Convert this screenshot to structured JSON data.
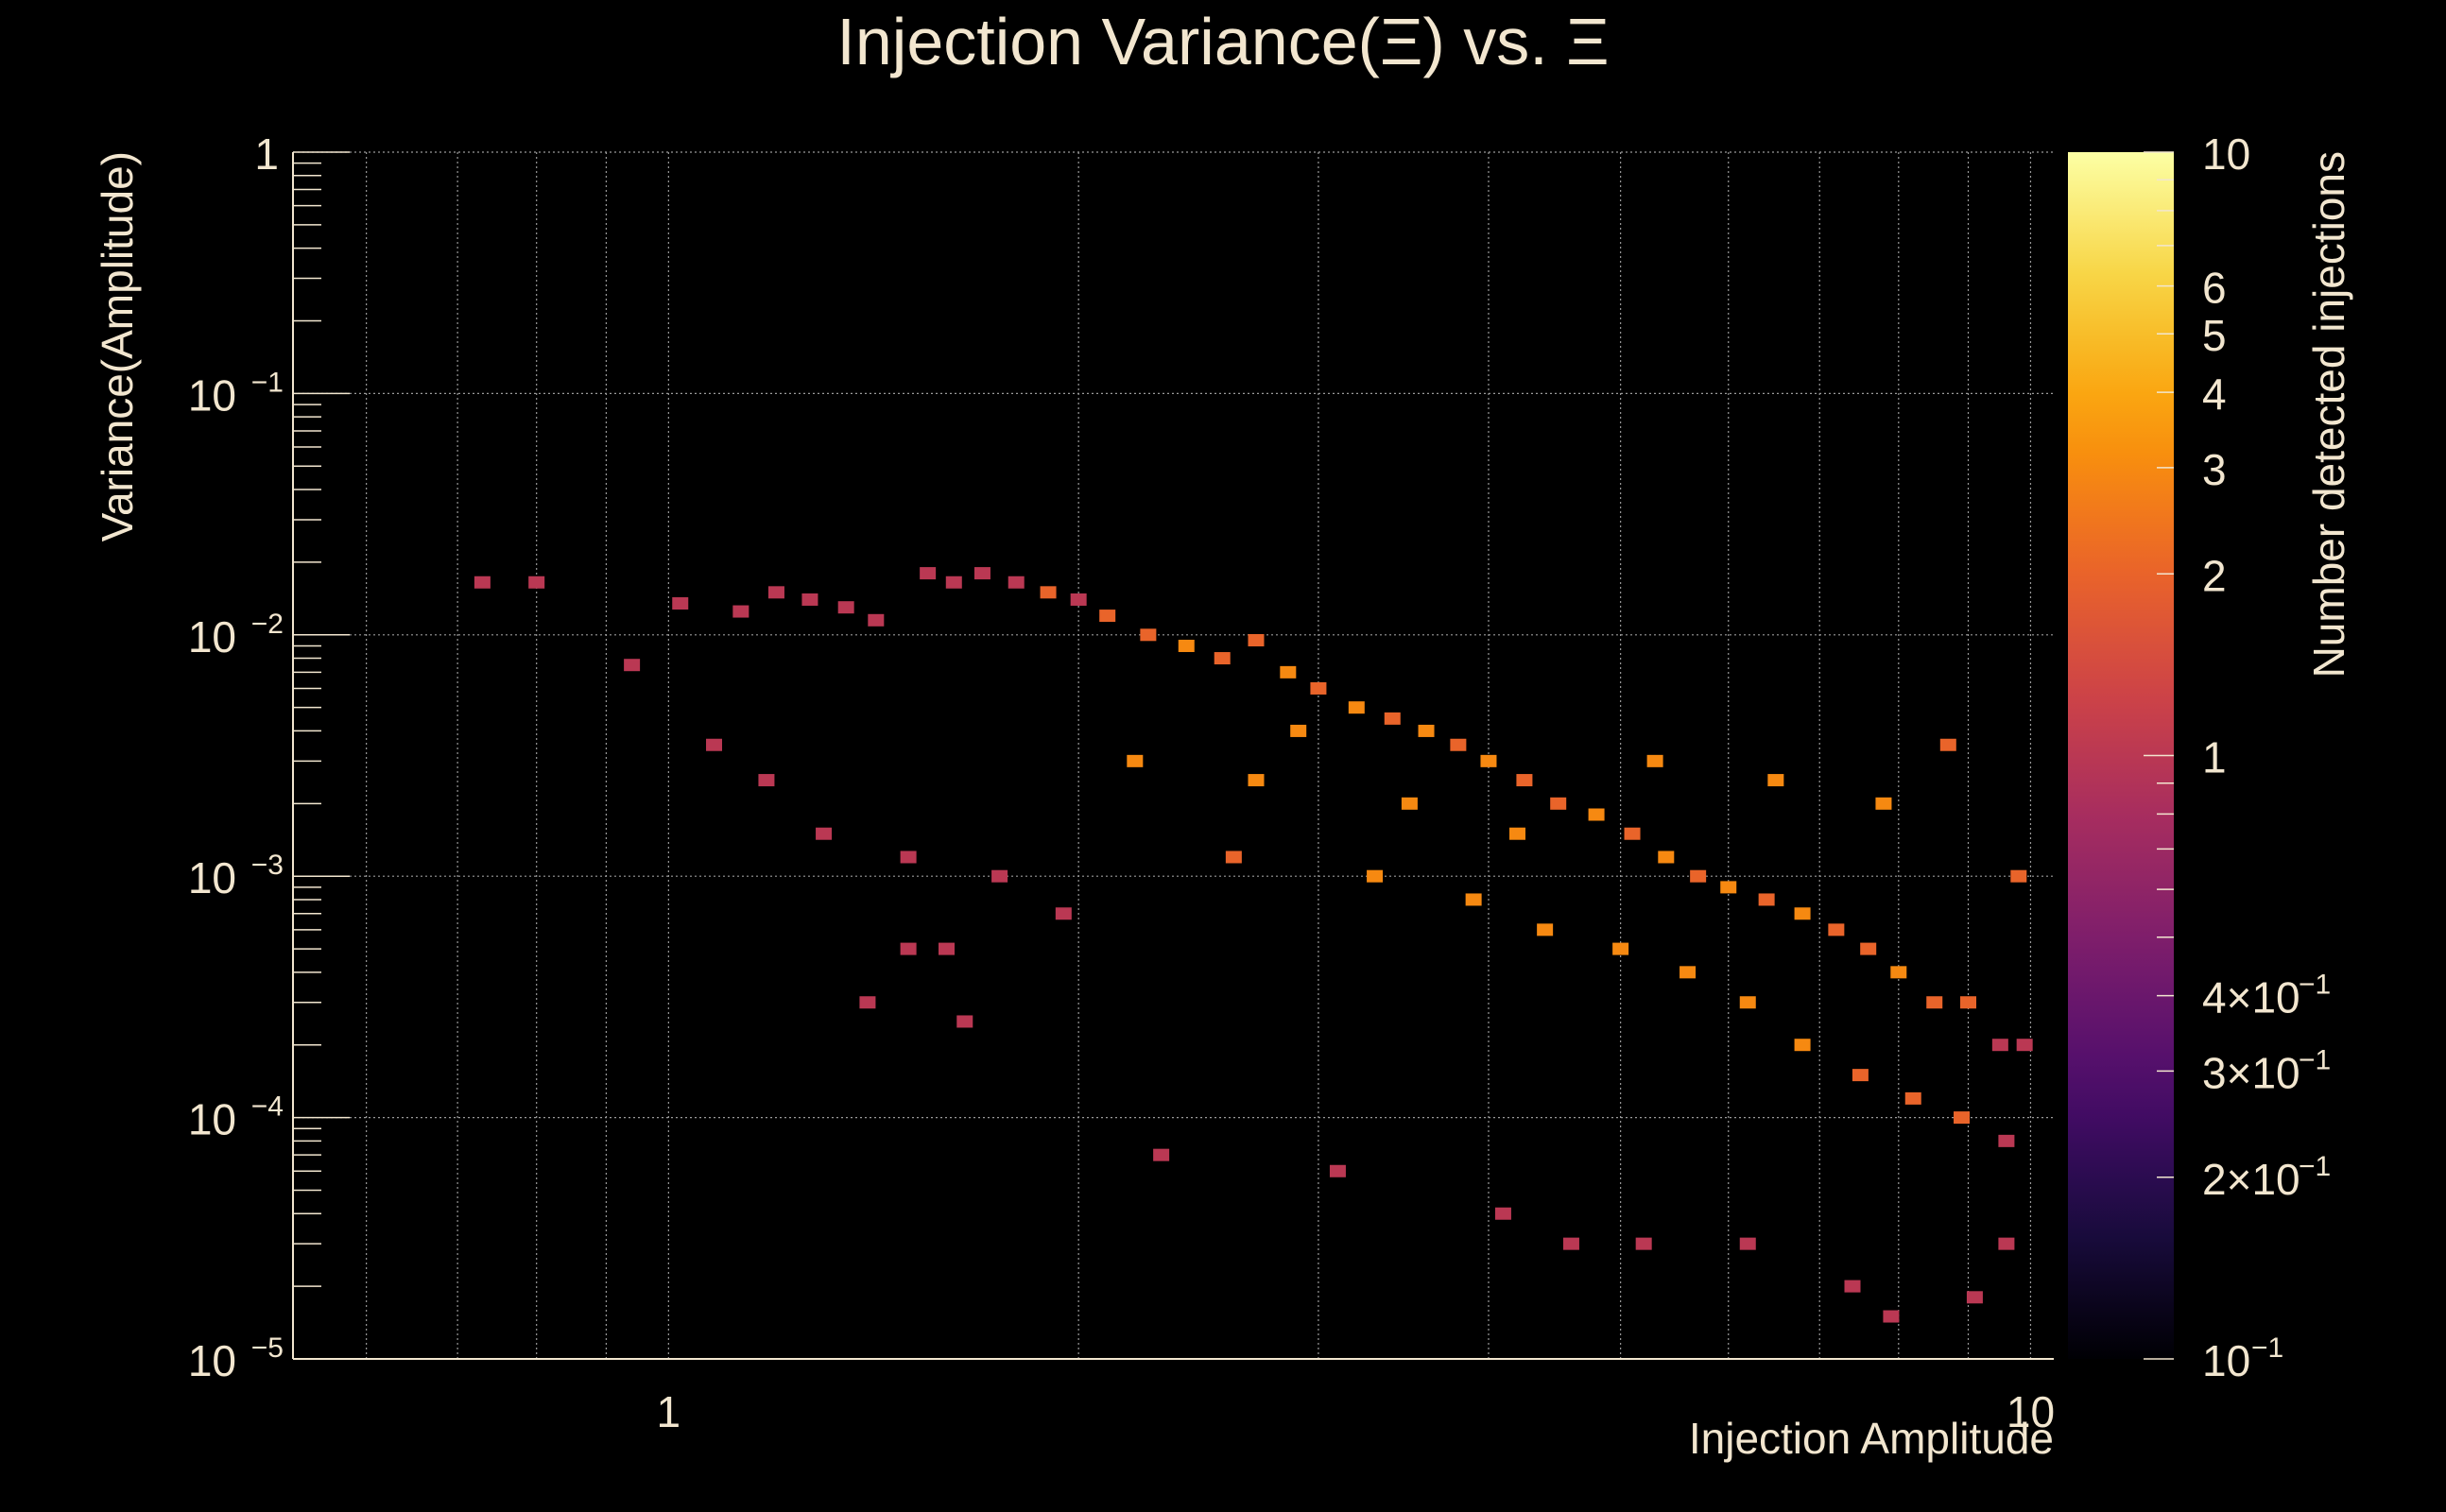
{
  "chart_data": {
    "type": "heatmap",
    "title": "Injection Variance(Ξ) vs. Ξ",
    "xlabel": "Injection Amplitude",
    "ylabel": "Variance(Amplitude)",
    "zlabel": "Number detected injections",
    "x_scale": "log",
    "y_scale": "log",
    "z_scale": "log",
    "xlim": [
      0.53,
      10.4
    ],
    "ylim": [
      1e-05,
      1
    ],
    "zlim": [
      0.1,
      10
    ],
    "grid": true,
    "x_tick_labels": [
      {
        "value": 1,
        "label": "1"
      },
      {
        "value": 10,
        "label": "10"
      }
    ],
    "y_tick_labels": [
      {
        "value": 1,
        "base": "1",
        "exp": ""
      },
      {
        "value": 0.1,
        "base": "10",
        "exp": "−1"
      },
      {
        "value": 0.01,
        "base": "10",
        "exp": "−2"
      },
      {
        "value": 0.001,
        "base": "10",
        "exp": "−3"
      },
      {
        "value": 0.0001,
        "base": "10",
        "exp": "−4"
      },
      {
        "value": 1e-05,
        "base": "10",
        "exp": "−5"
      }
    ],
    "z_tick_labels": [
      {
        "value": 10,
        "label": "10",
        "exp": ""
      },
      {
        "value": 6,
        "label": "6",
        "exp": ""
      },
      {
        "value": 5,
        "label": "5",
        "exp": ""
      },
      {
        "value": 4,
        "label": "4",
        "exp": ""
      },
      {
        "value": 3,
        "label": "3",
        "exp": ""
      },
      {
        "value": 2,
        "label": "2",
        "exp": ""
      },
      {
        "value": 1,
        "label": "1",
        "exp": ""
      },
      {
        "value": 0.4,
        "label": "4×10",
        "exp": "−1"
      },
      {
        "value": 0.3,
        "label": "3×10",
        "exp": "−1"
      },
      {
        "value": 0.2,
        "label": "2×10",
        "exp": "−1"
      },
      {
        "value": 0.1,
        "label": "10",
        "exp": "−1"
      }
    ],
    "colors": {
      "background": "#000000",
      "text": "#f2e6cf",
      "grid": "#9a9a9a",
      "palette": [
        "#000004",
        "#1b0c41",
        "#4a0c6b",
        "#781c6d",
        "#a52c60",
        "#cf4446",
        "#ed6925",
        "#fb9b06",
        "#f7d13d",
        "#fcffa4"
      ]
    },
    "cells_note": "counts per bin: [x_amplitude, variance, count]",
    "cells": [
      [
        0.73,
        0.0165,
        1
      ],
      [
        0.8,
        0.0165,
        1
      ],
      [
        0.94,
        0.0075,
        1
      ],
      [
        1.02,
        0.0135,
        1
      ],
      [
        1.13,
        0.0125,
        1
      ],
      [
        1.2,
        0.015,
        1
      ],
      [
        1.27,
        0.014,
        1
      ],
      [
        1.35,
        0.013,
        1
      ],
      [
        1.42,
        0.0115,
        1
      ],
      [
        1.55,
        0.018,
        1
      ],
      [
        1.62,
        0.0165,
        1
      ],
      [
        1.7,
        0.018,
        1
      ],
      [
        1.8,
        0.0165,
        1
      ],
      [
        1.9,
        0.015,
        2
      ],
      [
        2.0,
        0.014,
        1
      ],
      [
        2.1,
        0.012,
        2
      ],
      [
        2.25,
        0.01,
        2
      ],
      [
        2.4,
        0.009,
        3
      ],
      [
        2.55,
        0.008,
        2
      ],
      [
        2.7,
        0.0095,
        2
      ],
      [
        2.85,
        0.007,
        3
      ],
      [
        3.0,
        0.006,
        2
      ],
      [
        3.2,
        0.005,
        3
      ],
      [
        3.4,
        0.0045,
        2
      ],
      [
        3.6,
        0.004,
        3
      ],
      [
        3.8,
        0.0035,
        2
      ],
      [
        4.0,
        0.003,
        3
      ],
      [
        4.25,
        0.0025,
        2
      ],
      [
        4.5,
        0.002,
        2
      ],
      [
        4.8,
        0.0018,
        3
      ],
      [
        5.1,
        0.0015,
        2
      ],
      [
        5.4,
        0.0012,
        3
      ],
      [
        5.7,
        0.001,
        2
      ],
      [
        6.0,
        0.0009,
        3
      ],
      [
        6.4,
        0.0008,
        2
      ],
      [
        6.8,
        0.0007,
        3
      ],
      [
        7.2,
        0.0006,
        2
      ],
      [
        7.6,
        0.0005,
        2
      ],
      [
        8.0,
        0.0004,
        3
      ],
      [
        8.5,
        0.0003,
        2
      ],
      [
        9.0,
        0.0003,
        2
      ],
      [
        9.5,
        0.0002,
        1
      ],
      [
        9.9,
        0.0002,
        1
      ],
      [
        1.4,
        0.0003,
        1
      ],
      [
        1.65,
        0.00025,
        1
      ],
      [
        2.3,
        7e-05,
        1
      ],
      [
        3.1,
        6e-05,
        1
      ],
      [
        4.1,
        4e-05,
        1
      ],
      [
        4.6,
        3e-05,
        1
      ],
      [
        5.2,
        3e-05,
        1
      ],
      [
        6.2,
        3e-05,
        1
      ],
      [
        7.4,
        2e-05,
        1
      ],
      [
        7.9,
        1.5e-05,
        1
      ],
      [
        9.1,
        1.8e-05,
        1
      ],
      [
        9.6,
        3e-05,
        1
      ],
      [
        1.08,
        0.0035,
        1
      ],
      [
        1.18,
        0.0025,
        1
      ],
      [
        1.3,
        0.0015,
        1
      ],
      [
        1.5,
        0.0012,
        1
      ],
      [
        1.75,
        0.001,
        1
      ],
      [
        1.6,
        0.0005,
        1
      ],
      [
        1.5,
        0.0005,
        1
      ],
      [
        1.95,
        0.0007,
        1
      ],
      [
        2.6,
        0.0012,
        2
      ],
      [
        3.3,
        0.001,
        3
      ],
      [
        3.9,
        0.0008,
        3
      ],
      [
        4.4,
        0.0006,
        3
      ],
      [
        5.0,
        0.0005,
        3
      ],
      [
        5.6,
        0.0004,
        3
      ],
      [
        6.2,
        0.0003,
        3
      ],
      [
        6.8,
        0.0002,
        3
      ],
      [
        7.5,
        0.00015,
        2
      ],
      [
        8.2,
        0.00012,
        2
      ],
      [
        8.9,
        0.0001,
        2
      ],
      [
        9.6,
        8e-05,
        1
      ],
      [
        2.2,
        0.003,
        3
      ],
      [
        2.7,
        0.0025,
        3
      ],
      [
        3.5,
        0.002,
        3
      ],
      [
        4.2,
        0.0015,
        3
      ],
      [
        5.3,
        0.003,
        3
      ],
      [
        6.5,
        0.0025,
        3
      ],
      [
        7.8,
        0.002,
        3
      ],
      [
        8.7,
        0.0035,
        2
      ],
      [
        9.8,
        0.001,
        2
      ],
      [
        2.9,
        0.004,
        3
      ]
    ]
  }
}
